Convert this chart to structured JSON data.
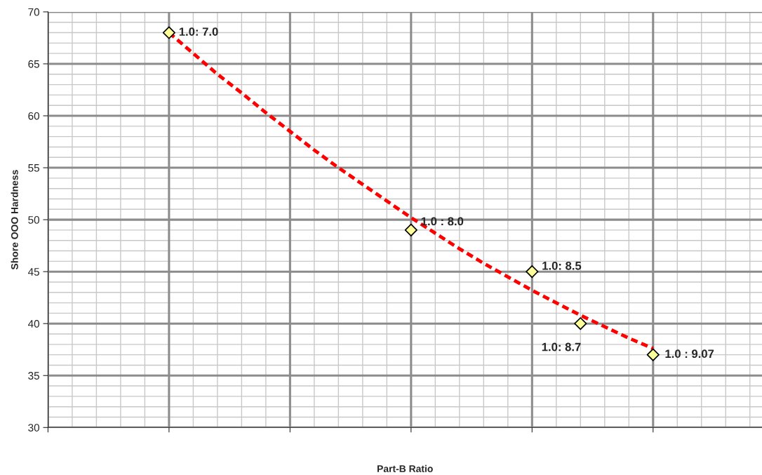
{
  "chart_data": {
    "type": "scatter",
    "xlabel": "Part-B Ratio",
    "ylabel": "Shore OOO Hardness",
    "categories": [
      null,
      null,
      null,
      null,
      null,
      null,
      null,
      null,
      null,
      null,
      null,
      null,
      null,
      null,
      null,
      null,
      null,
      null,
      null,
      null,
      null,
      null,
      null,
      null,
      null,
      null,
      null,
      null,
      null,
      null
    ],
    "series": [
      {
        "color": "#ffff99",
        "marker": "diamond",
        "values": [
          null,
          null,
          null,
          null,
          null,
          68,
          null,
          null,
          null,
          null,
          null,
          null,
          null,
          null,
          null,
          49,
          null,
          null,
          null,
          null,
          45,
          null,
          40,
          null,
          null,
          37,
          null,
          null,
          null,
          null
        ],
        "value_labels": [
          null,
          null,
          null,
          null,
          null,
          "1.0: 7.0",
          null,
          null,
          null,
          null,
          null,
          null,
          null,
          null,
          null,
          "1.0 : 8.0",
          null,
          null,
          null,
          null,
          "1.0: 8.5",
          null,
          "1.0: 8.7",
          null,
          null,
          "1.0 : 9.07",
          null,
          null,
          null,
          null
        ]
      },
      {
        "type": "line",
        "color": "#ff0000",
        "line_style": "dashed",
        "marker": "none",
        "values": [
          null,
          null,
          null,
          null,
          null,
          68,
          66.0,
          64.0,
          62.2,
          60.3,
          58.5,
          56.7,
          55.0,
          53.4,
          51.8,
          50.2,
          48.7,
          47.2,
          45.8,
          44.5,
          43.2,
          42.0,
          40.8,
          39.7,
          38.6,
          37.6,
          null,
          null,
          null,
          null
        ]
      }
    ],
    "ylim": [
      30,
      70
    ],
    "yticks": [
      30,
      35,
      40,
      45,
      50,
      55,
      60,
      65,
      70
    ],
    "grid": true
  }
}
